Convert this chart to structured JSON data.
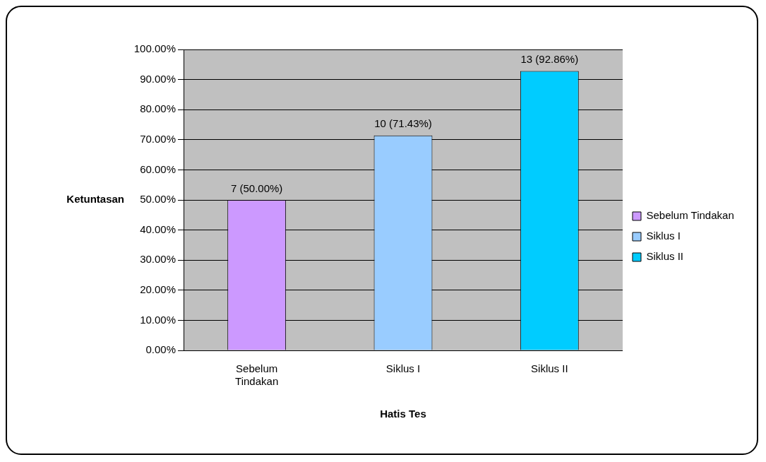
{
  "chart_data": {
    "type": "bar",
    "xlabel": "Hatis Tes",
    "ylabel": "Ketuntasan",
    "categories": [
      "Sebelum Tindakan",
      "Siklus I",
      "Siklus II"
    ],
    "series": [
      {
        "name": "Sebelum Tindakan",
        "color": "#cc99ff",
        "values": [
          50,
          null,
          null
        ],
        "value_labels": [
          "7 (50.00%)",
          null,
          null
        ]
      },
      {
        "name": "Siklus I",
        "color": "#99ccff",
        "values": [
          null,
          71.43,
          null
        ],
        "value_labels": [
          null,
          "10 (71.43%)",
          null
        ]
      },
      {
        "name": "Siklus II",
        "color": "#00ccff",
        "values": [
          null,
          null,
          92.86
        ],
        "value_labels": [
          null,
          null,
          "13 (92.86%)"
        ]
      }
    ],
    "ylim": [
      0,
      100
    ],
    "yticks": [
      {
        "value": 0,
        "label": "0.00%"
      },
      {
        "value": 10,
        "label": "10.00%"
      },
      {
        "value": 20,
        "label": "20.00%"
      },
      {
        "value": 30,
        "label": "30.00%"
      },
      {
        "value": 40,
        "label": "40.00%"
      },
      {
        "value": 50,
        "label": "50.00%"
      },
      {
        "value": 60,
        "label": "60.00%"
      },
      {
        "value": 70,
        "label": "70.00%"
      },
      {
        "value": 80,
        "label": "80.00%"
      },
      {
        "value": 90,
        "label": "90.00%"
      },
      {
        "value": 100,
        "label": "100.00%"
      }
    ],
    "grid": "y",
    "legend": "right"
  }
}
